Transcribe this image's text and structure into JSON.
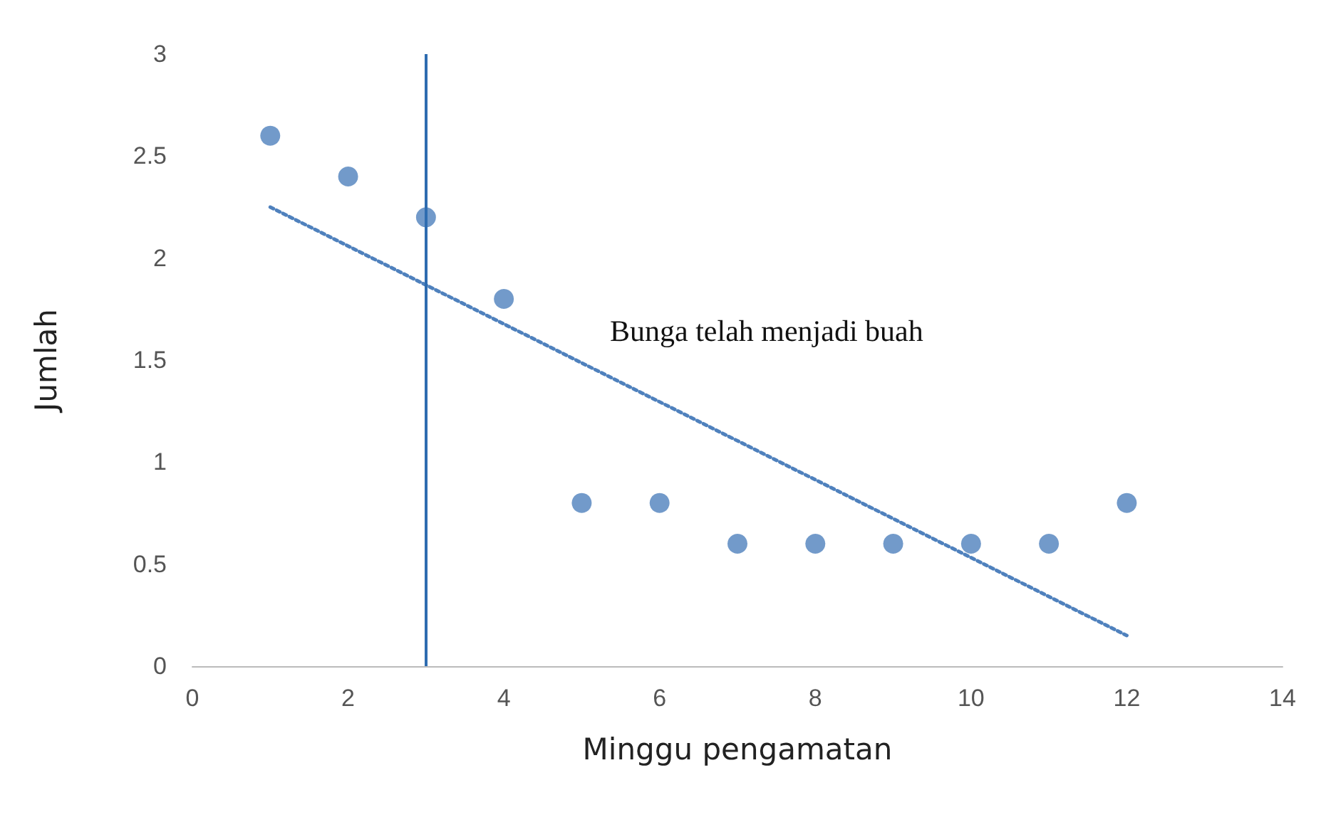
{
  "chart_data": {
    "type": "scatter",
    "xlabel": "Minggu pengamatan",
    "ylabel": "Jumlah",
    "x": [
      1,
      2,
      3,
      4,
      5,
      6,
      7,
      8,
      9,
      10,
      11,
      12
    ],
    "series": [
      {
        "color": "#4f81bd",
        "values": [
          2.6,
          2.4,
          2.2,
          1.8,
          0.8,
          0.8,
          0.6,
          0.6,
          0.6,
          0.6,
          0.6,
          0.8
        ]
      },
      {
        "type": "line",
        "color": "#4f81bd",
        "line_style": "dotted",
        "marker": "none",
        "x": [
          1,
          12
        ],
        "values": [
          2.25,
          0.15
        ]
      }
    ],
    "xlim": [
      0,
      14
    ],
    "xticks": [
      0,
      2,
      4,
      6,
      8,
      10,
      12,
      14
    ],
    "ylim": [
      0,
      3
    ],
    "yticks": [
      0,
      0.5,
      1,
      1.5,
      2,
      2.5,
      3
    ],
    "grid": false,
    "marker": "circle",
    "ref_lines": [
      {
        "axis": "x",
        "value": 3,
        "color": "#2e6cb0"
      }
    ],
    "annotations": [
      "Bunga telah menjadi buah"
    ]
  }
}
